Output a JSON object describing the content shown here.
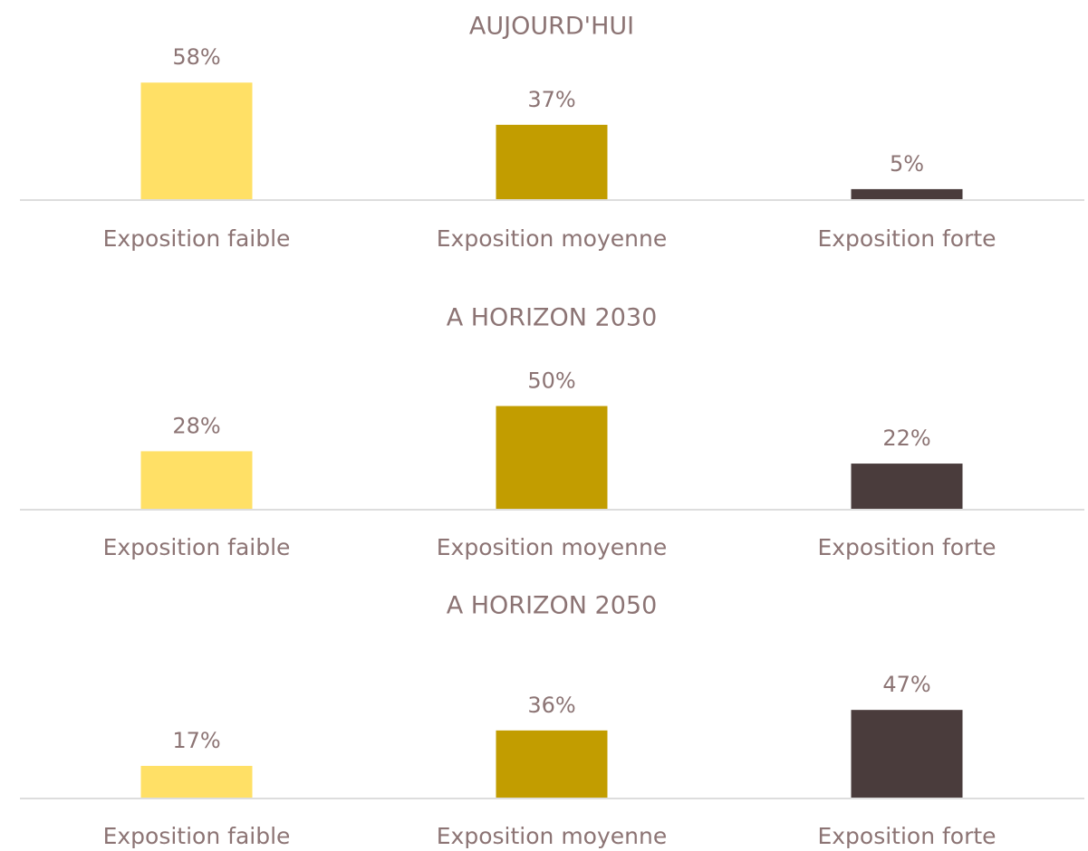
{
  "chart_data": [
    {
      "type": "bar",
      "title": "AUJOURD'HUI",
      "categories": [
        "Exposition faible",
        "Exposition moyenne",
        "Exposition forte"
      ],
      "values": [
        58,
        37,
        5
      ],
      "value_labels": [
        "58%",
        "37%",
        "5%"
      ],
      "colors": [
        "#ffe066",
        "#c29d00",
        "#4a3c3c"
      ]
    },
    {
      "type": "bar",
      "title": "A HORIZON 2030",
      "categories": [
        "Exposition faible",
        "Exposition moyenne",
        "Exposition forte"
      ],
      "values": [
        28,
        50,
        22
      ],
      "value_labels": [
        "28%",
        "50%",
        "22%"
      ],
      "colors": [
        "#ffe066",
        "#c29d00",
        "#4a3c3c"
      ]
    },
    {
      "type": "bar",
      "title": "A HORIZON 2050",
      "categories": [
        "Exposition faible",
        "Exposition moyenne",
        "Exposition forte"
      ],
      "values": [
        17,
        36,
        47
      ],
      "value_labels": [
        "17%",
        "36%",
        "47%"
      ],
      "colors": [
        "#ffe066",
        "#c29d00",
        "#4a3c3c"
      ]
    }
  ]
}
